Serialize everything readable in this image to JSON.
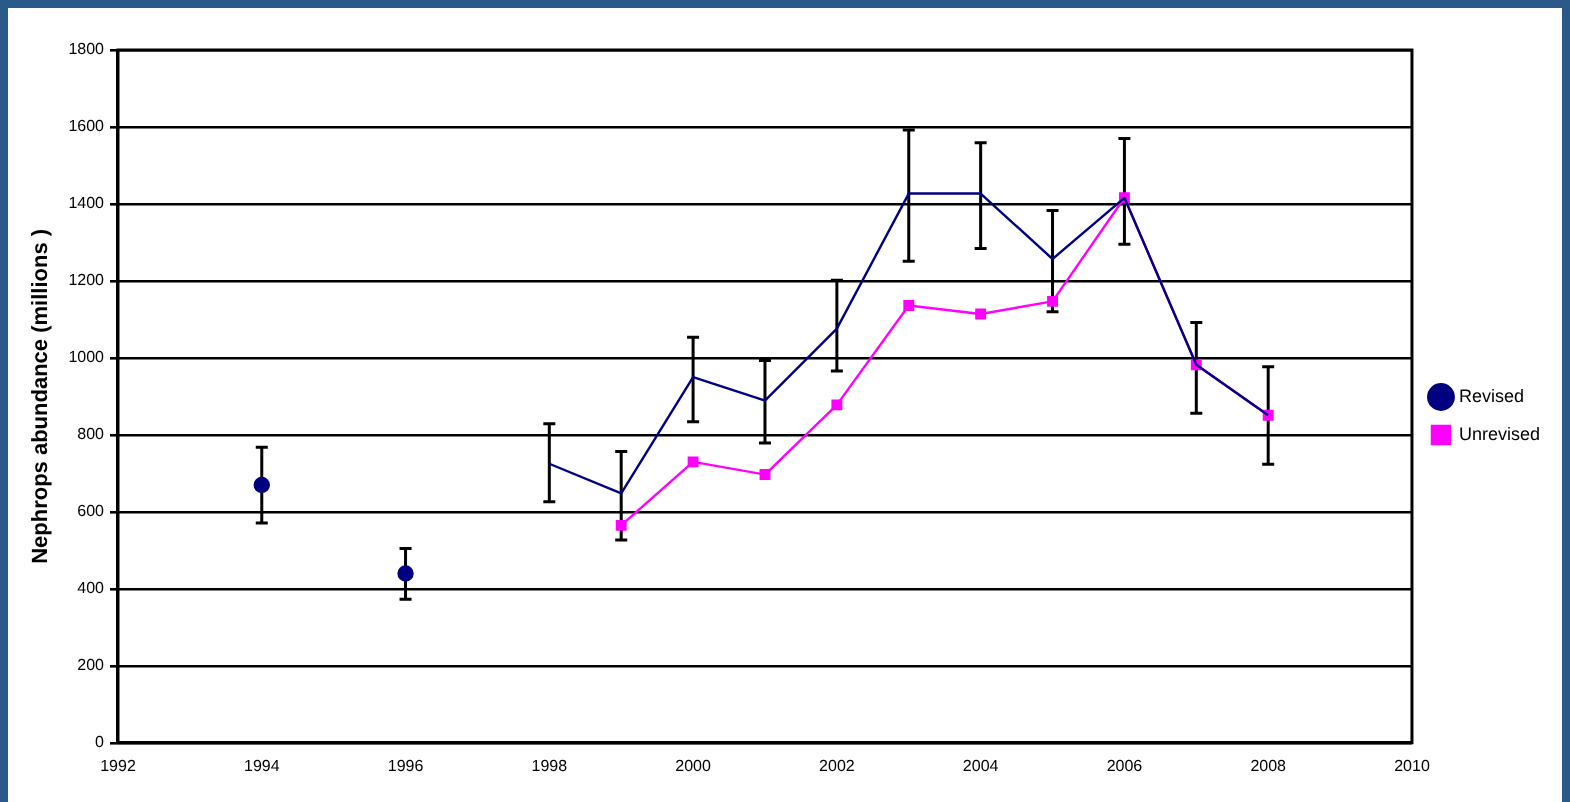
{
  "chart_data": {
    "type": "line",
    "ylabel": "Nephrops abundance (millions )",
    "xlim": [
      1992,
      2010
    ],
    "xticks": [
      1992,
      1994,
      1996,
      1998,
      2000,
      2002,
      2004,
      2006,
      2008,
      2010
    ],
    "ylim": [
      0,
      1800
    ],
    "yticks": [
      0,
      200,
      400,
      600,
      800,
      1000,
      1200,
      1400,
      1600,
      1800
    ],
    "grid": "y",
    "legend": "right",
    "series": [
      {
        "name": "Revised",
        "color": "#000080",
        "marker": "none",
        "x": [
          1994,
          1995,
          1996,
          1997,
          1998,
          1999,
          2000,
          2001,
          2002,
          2003,
          2004,
          2005,
          2006,
          2007,
          2008
        ],
        "values": [
          670,
          null,
          440,
          null,
          725,
          648,
          950,
          889,
          1076,
          1427,
          1427,
          1257,
          1416,
          982,
          851
        ],
        "errors": [
          [
            571,
            768
          ],
          null,
          [
            373,
            505
          ],
          null,
          [
            626,
            829
          ],
          [
            527,
            757
          ],
          [
            834,
            1054
          ],
          [
            779,
            993
          ],
          [
            966,
            1202
          ],
          [
            1251,
            1592
          ],
          [
            1284,
            1559
          ],
          [
            1120,
            1383
          ],
          [
            1295,
            1570
          ],
          [
            856,
            1092
          ],
          [
            724,
            977
          ]
        ]
      },
      {
        "name": "Unrevised",
        "color": "#ff00ff",
        "marker": "square",
        "x": [
          1999,
          2000,
          2001,
          2002,
          2003,
          2004,
          2005,
          2006,
          2007,
          2008
        ],
        "values": [
          565,
          730,
          697,
          878,
          1136,
          1114,
          1147,
          1416,
          982,
          851
        ]
      }
    ]
  }
}
